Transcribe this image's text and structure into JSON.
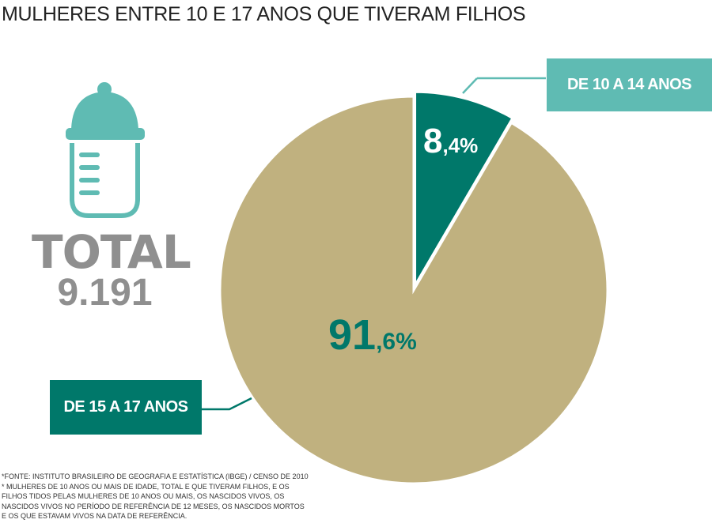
{
  "title": "MULHERES ENTRE 10 E 17 ANOS QUE TIVERAM FILHOS",
  "total": {
    "label": "TOTAL",
    "value": "9.191"
  },
  "chart_data": {
    "type": "pie",
    "title": "MULHERES ENTRE 10 E 17 ANOS QUE TIVERAM FILHOS",
    "slices": [
      {
        "label": "DE 10 A 14 ANOS",
        "value": 8.4,
        "display_int": "8",
        "display_dec": ",4%",
        "color": "#00786a"
      },
      {
        "label": "DE 15 A 17 ANOS",
        "value": 91.6,
        "display_int": "91",
        "display_dec": ",6%",
        "color": "#c0b17f"
      }
    ]
  },
  "label_color": "#5fbbb3",
  "footnotes": [
    "*FONTE: INSTITUTO BRASILEIRO DE GEOGRAFIA E ESTATÍSTICA (IBGE) / CENSO DE 2010",
    "* MULHERES DE 10 ANOS OU MAIS DE IDADE, TOTAL E QUE TIVERAM FILHOS, E OS",
    "FILHOS TIDOS PELAS MULHERES DE 10 ANOS OU MAIS, OS NASCIDOS VIVOS, OS",
    "NASCIDOS VIVOS NO PERÍODO DE REFERÊNCIA DE 12 MESES, OS NASCIDOS MORTOS",
    "E OS QUE ESTAVAM VIVOS NA DATA DE REFERÊNCIA."
  ]
}
